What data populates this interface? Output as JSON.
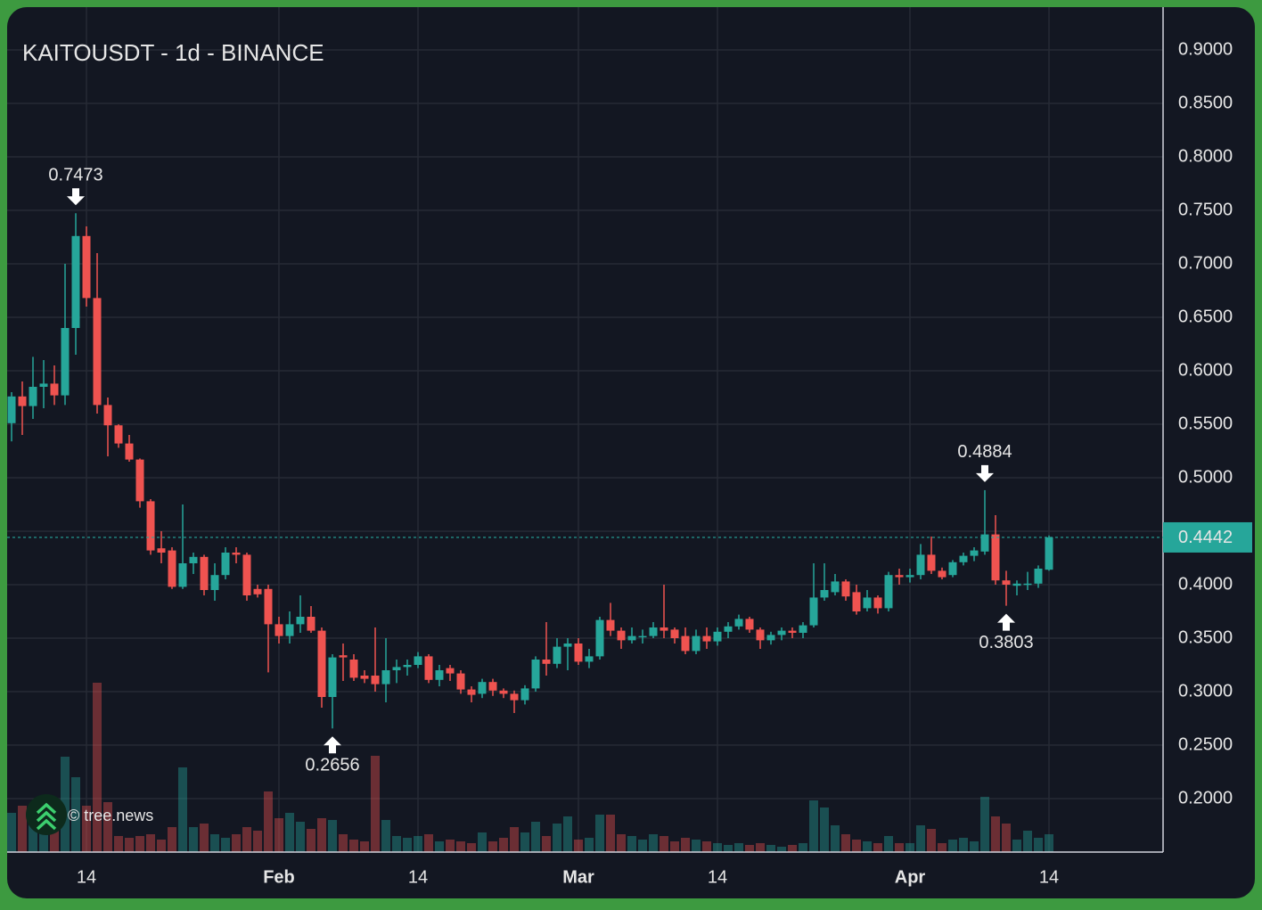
{
  "chart_data": {
    "type": "candlestick",
    "title": "KAITOUSDT - 1d - BINANCE",
    "watermark": "© tree.news",
    "categories": [
      "Jan 7",
      "Jan 8",
      "Jan 9",
      "Jan 10",
      "Jan 11",
      "Jan 12",
      "Jan 13",
      "Jan 14",
      "Jan 15",
      "Jan 16",
      "Jan 17",
      "Jan 18",
      "Jan 19",
      "Jan 20",
      "Jan 21",
      "Jan 22",
      "Jan 23",
      "Jan 24",
      "Jan 25",
      "Jan 26",
      "Jan 27",
      "Jan 28",
      "Jan 29",
      "Jan 30",
      "Jan 31",
      "Feb 1",
      "Feb 2",
      "Feb 3",
      "Feb 4",
      "Feb 5",
      "Feb 6",
      "Feb 7",
      "Feb 8",
      "Feb 9",
      "Feb 10",
      "Feb 11",
      "Feb 12",
      "Feb 13",
      "Feb 14",
      "Feb 15",
      "Feb 16",
      "Feb 17",
      "Feb 18",
      "Feb 19",
      "Feb 20",
      "Feb 21",
      "Feb 22",
      "Feb 23",
      "Feb 24",
      "Feb 25",
      "Feb 26",
      "Feb 27",
      "Feb 28",
      "Mar 1",
      "Mar 2",
      "Mar 3",
      "Mar 4",
      "Mar 5",
      "Mar 6",
      "Mar 7",
      "Mar 8",
      "Mar 9",
      "Mar 10",
      "Mar 11",
      "Mar 12",
      "Mar 13",
      "Mar 14",
      "Mar 15",
      "Mar 16",
      "Mar 17",
      "Mar 18",
      "Mar 19",
      "Mar 20",
      "Mar 21",
      "Mar 22",
      "Mar 23",
      "Mar 24",
      "Mar 25",
      "Mar 26",
      "Mar 27",
      "Mar 28",
      "Mar 29",
      "Mar 30",
      "Mar 31",
      "Apr 1",
      "Apr 2",
      "Apr 3",
      "Apr 4",
      "Apr 5",
      "Apr 6",
      "Apr 7",
      "Apr 8",
      "Apr 9",
      "Apr 10",
      "Apr 11",
      "Apr 12",
      "Apr 13",
      "Apr 14"
    ],
    "open": [
      0.551,
      0.576,
      0.567,
      0.585,
      0.588,
      0.577,
      0.64,
      0.726,
      0.668,
      0.568,
      0.549,
      0.532,
      0.517,
      0.478,
      0.434,
      0.432,
      0.398,
      0.42,
      0.426,
      0.395,
      0.409,
      0.43,
      0.428,
      0.396,
      0.396,
      0.363,
      0.352,
      0.363,
      0.37,
      0.357,
      0.295,
      0.334,
      0.33,
      0.315,
      0.315,
      0.307,
      0.32,
      0.323,
      0.325,
      0.333,
      0.311,
      0.322,
      0.317,
      0.302,
      0.298,
      0.309,
      0.301,
      0.298,
      0.292,
      0.303,
      0.33,
      0.326,
      0.342,
      0.345,
      0.328,
      0.333,
      0.367,
      0.357,
      0.348,
      0.351,
      0.352,
      0.36,
      0.358,
      0.352,
      0.338,
      0.352,
      0.347,
      0.356,
      0.361,
      0.368,
      0.358,
      0.348,
      0.353,
      0.357,
      0.355,
      0.362,
      0.388,
      0.393,
      0.403,
      0.393,
      0.378,
      0.388,
      0.378,
      0.409,
      0.407,
      0.409,
      0.428,
      0.413,
      0.409,
      0.421,
      0.427,
      0.431,
      0.447,
      0.404,
      0.399,
      0.4,
      0.401,
      0.414
    ],
    "high": [
      0.58,
      0.59,
      0.613,
      0.61,
      0.605,
      0.7,
      0.7473,
      0.735,
      0.71,
      0.575,
      0.55,
      0.54,
      0.518,
      0.48,
      0.45,
      0.435,
      0.475,
      0.43,
      0.428,
      0.42,
      0.435,
      0.435,
      0.43,
      0.4,
      0.4,
      0.37,
      0.375,
      0.39,
      0.38,
      0.36,
      0.335,
      0.345,
      0.335,
      0.32,
      0.36,
      0.35,
      0.33,
      0.33,
      0.337,
      0.335,
      0.325,
      0.325,
      0.32,
      0.305,
      0.312,
      0.312,
      0.303,
      0.301,
      0.306,
      0.333,
      0.365,
      0.35,
      0.35,
      0.35,
      0.34,
      0.37,
      0.383,
      0.36,
      0.36,
      0.358,
      0.365,
      0.4,
      0.36,
      0.36,
      0.358,
      0.36,
      0.36,
      0.365,
      0.372,
      0.37,
      0.36,
      0.356,
      0.36,
      0.36,
      0.365,
      0.42,
      0.42,
      0.41,
      0.405,
      0.4,
      0.395,
      0.39,
      0.412,
      0.415,
      0.415,
      0.438,
      0.445,
      0.416,
      0.423,
      0.43,
      0.435,
      0.4884,
      0.465,
      0.413,
      0.404,
      0.412,
      0.418,
      0.446
    ],
    "low": [
      0.534,
      0.54,
      0.555,
      0.565,
      0.568,
      0.568,
      0.615,
      0.66,
      0.56,
      0.52,
      0.528,
      0.515,
      0.472,
      0.428,
      0.42,
      0.396,
      0.396,
      0.41,
      0.39,
      0.385,
      0.405,
      0.42,
      0.385,
      0.388,
      0.318,
      0.345,
      0.345,
      0.355,
      0.355,
      0.285,
      0.2656,
      0.31,
      0.31,
      0.308,
      0.3,
      0.29,
      0.308,
      0.315,
      0.322,
      0.308,
      0.305,
      0.31,
      0.298,
      0.29,
      0.294,
      0.296,
      0.294,
      0.28,
      0.288,
      0.3,
      0.315,
      0.322,
      0.32,
      0.325,
      0.322,
      0.33,
      0.352,
      0.34,
      0.345,
      0.345,
      0.35,
      0.35,
      0.345,
      0.335,
      0.335,
      0.34,
      0.343,
      0.35,
      0.358,
      0.355,
      0.34,
      0.344,
      0.348,
      0.35,
      0.35,
      0.36,
      0.385,
      0.39,
      0.385,
      0.372,
      0.375,
      0.373,
      0.375,
      0.4,
      0.402,
      0.405,
      0.41,
      0.405,
      0.407,
      0.418,
      0.422,
      0.428,
      0.4,
      0.3803,
      0.39,
      0.395,
      0.397,
      0.413
    ],
    "close": [
      0.576,
      0.567,
      0.585,
      0.588,
      0.577,
      0.64,
      0.726,
      0.668,
      0.568,
      0.549,
      0.532,
      0.517,
      0.478,
      0.432,
      0.43,
      0.398,
      0.42,
      0.426,
      0.395,
      0.409,
      0.43,
      0.428,
      0.39,
      0.391,
      0.363,
      0.352,
      0.363,
      0.37,
      0.357,
      0.295,
      0.332,
      0.332,
      0.313,
      0.312,
      0.307,
      0.32,
      0.323,
      0.325,
      0.333,
      0.311,
      0.32,
      0.317,
      0.302,
      0.297,
      0.309,
      0.301,
      0.298,
      0.292,
      0.303,
      0.33,
      0.326,
      0.342,
      0.345,
      0.328,
      0.333,
      0.367,
      0.357,
      0.348,
      0.352,
      0.352,
      0.36,
      0.357,
      0.35,
      0.338,
      0.352,
      0.347,
      0.356,
      0.361,
      0.368,
      0.358,
      0.348,
      0.353,
      0.357,
      0.355,
      0.362,
      0.388,
      0.395,
      0.403,
      0.389,
      0.375,
      0.388,
      0.378,
      0.409,
      0.407,
      0.409,
      0.428,
      0.413,
      0.407,
      0.421,
      0.427,
      0.432,
      0.447,
      0.404,
      0.4,
      0.401,
      0.401,
      0.415,
      0.4442
    ],
    "volume": [
      44,
      52,
      40,
      38,
      30,
      107,
      84,
      52,
      190,
      56,
      18,
      16,
      18,
      20,
      14,
      28,
      95,
      28,
      32,
      20,
      16,
      20,
      28,
      24,
      68,
      38,
      44,
      34,
      26,
      38,
      36,
      20,
      14,
      12,
      108,
      36,
      18,
      16,
      18,
      20,
      12,
      14,
      12,
      10,
      22,
      12,
      16,
      28,
      22,
      34,
      18,
      32,
      40,
      14,
      16,
      42,
      42,
      20,
      18,
      14,
      20,
      18,
      12,
      16,
      14,
      12,
      10,
      8,
      10,
      8,
      10,
      8,
      6,
      8,
      10,
      58,
      50,
      30,
      20,
      14,
      12,
      10,
      18,
      10,
      10,
      30,
      26,
      10,
      14,
      16,
      12,
      62,
      40,
      32,
      14,
      24,
      16,
      20
    ],
    "up_color": "#26a69a",
    "down_color": "#ef5350",
    "last_price": 0.4442,
    "ylim": [
      0.15,
      0.94
    ],
    "yticks": [
      {
        "value": 0.2,
        "label": "0.2000"
      },
      {
        "value": 0.25,
        "label": "0.2500"
      },
      {
        "value": 0.3,
        "label": "0.3000"
      },
      {
        "value": 0.35,
        "label": "0.3500"
      },
      {
        "value": 0.4,
        "label": "0.4000"
      },
      {
        "value": 0.45,
        "label": "0.4500"
      },
      {
        "value": 0.5,
        "label": "0.5000"
      },
      {
        "value": 0.55,
        "label": "0.5500"
      },
      {
        "value": 0.6,
        "label": "0.6000"
      },
      {
        "value": 0.65,
        "label": "0.6500"
      },
      {
        "value": 0.7,
        "label": "0.7000"
      },
      {
        "value": 0.75,
        "label": "0.7500"
      },
      {
        "value": 0.8,
        "label": "0.8000"
      },
      {
        "value": 0.85,
        "label": "0.8500"
      },
      {
        "value": 0.9,
        "label": "0.9000"
      }
    ],
    "xticks": [
      {
        "value": "Jan 14",
        "label": "14"
      },
      {
        "value": "Feb 1",
        "label": "Feb"
      },
      {
        "value": "Feb 14",
        "label": "14"
      },
      {
        "value": "Mar 1",
        "label": "Mar"
      },
      {
        "value": "Mar 14",
        "label": "14"
      },
      {
        "value": "Apr 1",
        "label": "Apr"
      },
      {
        "value": "Apr 14",
        "label": "14"
      }
    ],
    "annotations": [
      {
        "category": "Jan 13",
        "value": 0.7473,
        "position": "above"
      },
      {
        "category": "Feb 6",
        "value": 0.2656,
        "position": "below"
      },
      {
        "category": "Apr 8",
        "value": 0.4884,
        "position": "above"
      },
      {
        "category": "Apr 10",
        "value": 0.3803,
        "position": "below"
      }
    ],
    "grid": true
  }
}
